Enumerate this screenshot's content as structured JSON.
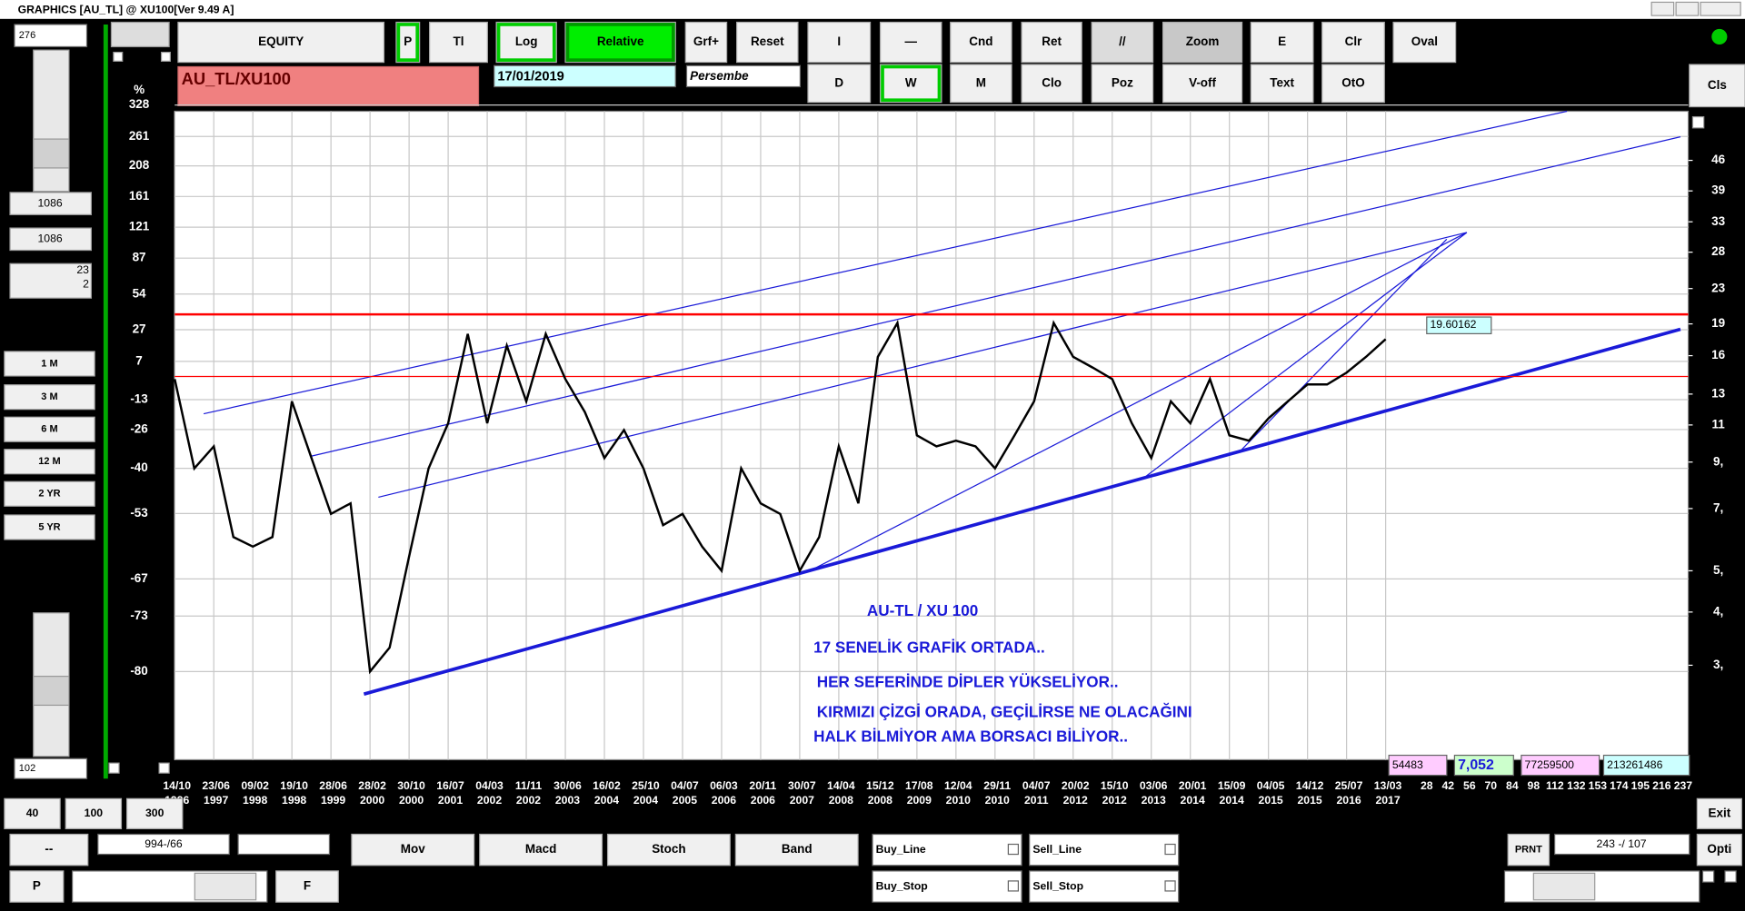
{
  "window_title": "GRAPHICS  [AU_TL] @ XU100[Ver 9.49 A]",
  "left_panel": {
    "top_value": "276",
    "value1": "1086",
    "value2": "1086",
    "readout": [
      "23",
      "2"
    ],
    "periods": [
      "1 M",
      "3 M",
      "6 M",
      "12 M",
      "2 YR",
      "5 YR"
    ],
    "bottom_value": "102"
  },
  "toolbar": {
    "row1": [
      "EQUITY",
      "P",
      "Tl",
      "Log",
      "Relative",
      "Grf+",
      "Reset",
      "I",
      "—",
      "Cnd",
      "Ret",
      "//",
      "Zoom",
      "E",
      "Clr",
      "Oval"
    ],
    "row2": [
      "D",
      "W",
      "M",
      "Clo",
      "Poz",
      "V-off",
      "Text",
      "OtO"
    ],
    "cls": "Cls"
  },
  "symbol": "AU_TL/XU100",
  "date": "17/01/2019",
  "day": "Persembe",
  "chart_data": {
    "type": "line",
    "log_scale": true,
    "grid": true,
    "color": "#000000",
    "categories": [
      "14/10",
      null,
      "23/06",
      null,
      "09/02",
      null,
      "19/10",
      null,
      "28/06",
      null,
      "28/02",
      null,
      "30/10",
      null,
      "16/07",
      null,
      "04/03",
      null,
      "11/11",
      null,
      "30/06",
      null,
      "16/02",
      null,
      "25/10",
      null,
      "04/07",
      null,
      "06/03",
      null,
      "20/11",
      null,
      "30/07",
      null,
      "14/04",
      null,
      "15/12",
      null,
      "17/08",
      null,
      "12/04",
      null,
      "29/11",
      null,
      "04/07",
      null,
      "20/02",
      null,
      "15/10",
      null,
      "03/06",
      null,
      "20/01",
      null,
      "15/09",
      null,
      "04/05",
      null,
      "14/12",
      null,
      "25/07",
      null,
      "13/03"
    ],
    "category_years": [
      "1996",
      null,
      "1997",
      null,
      "1998",
      null,
      "1998",
      null,
      "1999",
      null,
      "2000",
      null,
      "2000",
      null,
      "2001",
      null,
      "2002",
      null,
      "2002",
      null,
      "2003",
      null,
      "2004",
      null,
      "2004",
      null,
      "2005",
      null,
      "2006",
      null,
      "2006",
      null,
      "2007",
      null,
      "2008",
      null,
      "2008",
      null,
      "2009",
      null,
      "2010",
      null,
      "2010",
      null,
      "2011",
      null,
      "2012",
      null,
      "2012",
      null,
      "2013",
      null,
      "2014",
      null,
      "2014",
      null,
      "2015",
      null,
      "2015",
      null,
      "2016",
      null,
      "2017"
    ],
    "values": [
      14.1,
      8.7,
      9.8,
      6.0,
      5.7,
      6.0,
      12.5,
      9.2,
      6.8,
      7.2,
      2.9,
      3.3,
      5.4,
      8.7,
      11.1,
      18.0,
      11.1,
      16.9,
      12.5,
      18.0,
      14.1,
      11.8,
      9.2,
      10.7,
      8.7,
      6.4,
      6.8,
      5.7,
      5.0,
      8.7,
      7.2,
      6.8,
      5.0,
      6.0,
      9.8,
      7.2,
      15.9,
      19.1,
      10.4,
      9.8,
      10.1,
      9.8,
      8.7,
      10.4,
      12.5,
      19.1,
      15.9,
      15.0,
      14.1,
      11.1,
      9.2,
      12.5,
      11.1,
      14.1,
      10.4,
      10.1,
      11.4,
      12.5,
      13.7,
      13.7,
      14.6,
      15.9,
      17.5
    ],
    "ylim": [
      1.8,
      60
    ],
    "yticks": [
      46,
      39,
      33,
      28,
      23,
      19,
      16,
      13,
      11,
      {
        "value": 9,
        "label": "9,"
      },
      {
        "value": 7,
        "label": "7,"
      },
      {
        "value": 5,
        "label": "5,"
      },
      {
        "value": 4,
        "label": "4,"
      },
      {
        "value": 3,
        "label": "3,"
      }
    ],
    "percent_axis": {
      "label": "%",
      "ticks": [
        328,
        261,
        208,
        161,
        121,
        87,
        54,
        27,
        7,
        -13,
        -26,
        -40,
        -53,
        -67,
        -73,
        -80
      ]
    },
    "reference_lines": [
      {
        "value": 20.0,
        "color": "#ff0000"
      },
      {
        "value": 14.3,
        "color": "#ff0000"
      }
    ],
    "last_price_label": "19.60162",
    "right_scale_labels": [
      "28",
      "42",
      "56",
      "70",
      "84",
      "98",
      "112",
      "132",
      "153",
      "174",
      "195",
      "216",
      "237"
    ]
  },
  "annotations": [
    "AU-TL  /  XU 100",
    "17 SENELİK GRAFİK ORTADA..",
    "HER SEFERİNDE  DİPLER   YÜKSELİYOR..",
    "KIRMIZI ÇİZGİ  ORADA, GEÇİLİRSE NE OLACAĞINI",
    "HALK BİLMİYOR  AMA   BORSACI   BİLİYOR.."
  ],
  "info_boxes": [
    "54483",
    "7,052",
    "77259500",
    "213261486"
  ],
  "bottom": {
    "zoom_buttons": [
      "40",
      "100",
      "300"
    ],
    "field1": "--",
    "field2": "994-/66",
    "p": "P",
    "f": "F",
    "indicators": [
      "Mov",
      "Macd",
      "Stoch",
      "Band"
    ],
    "checks": [
      "Buy_Line",
      "Sell_Line",
      "Buy_Stop",
      "Sell_Stop"
    ],
    "prnt": "PRNT",
    "coords": "243 -/ 107",
    "exit": "Exit",
    "opti": "Opti"
  }
}
